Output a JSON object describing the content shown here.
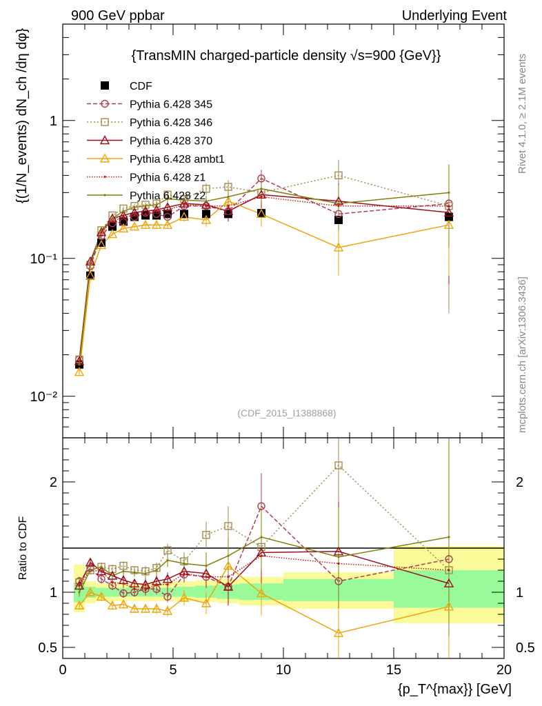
{
  "header": {
    "left": "900 GeV ppbar",
    "right": "Underlying Event"
  },
  "side_texts": {
    "rivet": "Rivet 4.1.0, ≥ 2.1M events",
    "mcplots": "mcplots.cern.ch [arXiv:1306.3436]"
  },
  "colors": {
    "CDF": "#000000",
    "p345": "#b03c54",
    "p346": "#a58a4a",
    "p370": "#990d1e",
    "ambt1": "#f0a30a",
    "z1": "#c0180e",
    "z2": "#7f7f0a",
    "band_inner": "#98fa98",
    "band_outer": "#fafa98"
  },
  "chart_data": [
    {
      "type": "line",
      "panel": "main",
      "title": "{TransMIN charged-particle density √s=900 {GeV}}",
      "ylabel": "{(1/N_events) dN_ch /dη dφ}",
      "xlabel": "",
      "yscale": "log",
      "ylim": [
        0.005,
        5
      ],
      "xlim": [
        0,
        20
      ],
      "ytick_labels": [
        "10⁻²",
        "10⁻¹",
        "1"
      ],
      "watermark": "(CDF_2015_I1388868)",
      "legend_position": "top-left",
      "series": [
        {
          "key": "CDF",
          "name": "CDF",
          "style": "data",
          "x": [
            0.75,
            1.25,
            1.75,
            2.25,
            2.75,
            3.25,
            3.75,
            4.25,
            4.75,
            5.5,
            6.5,
            7.5,
            9,
            12.5,
            17.5
          ],
          "y": [
            0.017,
            0.075,
            0.13,
            0.17,
            0.185,
            0.2,
            0.205,
            0.205,
            0.21,
            0.21,
            0.21,
            0.21,
            0.213,
            0.19,
            0.2
          ],
          "yerr": [
            0.001,
            0.003,
            0.004,
            0.005,
            0.006,
            0.006,
            0.006,
            0.007,
            0.008,
            0.01,
            0.012,
            0.015,
            0.02,
            0.03,
            0.05
          ]
        },
        {
          "key": "p345",
          "name": "Pythia 6.428 345",
          "style": "dashed",
          "marker": "circle",
          "x": [
            0.75,
            1.25,
            1.75,
            2.25,
            2.75,
            3.25,
            3.75,
            4.25,
            4.75,
            5.5,
            6.5,
            7.5,
            9,
            12.5,
            17.5
          ],
          "y": [
            0.0185,
            0.088,
            0.145,
            0.18,
            0.183,
            0.2,
            0.215,
            0.21,
            0.2,
            0.24,
            0.24,
            0.22,
            0.38,
            0.21,
            0.25
          ],
          "yerr": [
            0.001,
            0.003,
            0.004,
            0.006,
            0.006,
            0.007,
            0.008,
            0.009,
            0.01,
            0.015,
            0.02,
            0.03,
            0.06,
            0.08,
            0.12
          ]
        },
        {
          "key": "p346",
          "name": "Pythia 6.428 346",
          "style": "dotted",
          "marker": "square",
          "x": [
            0.75,
            1.25,
            1.75,
            2.25,
            2.75,
            3.25,
            3.75,
            4.25,
            4.75,
            5.5,
            6.5,
            7.5,
            9,
            12.5,
            17.5
          ],
          "y": [
            0.0185,
            0.09,
            0.16,
            0.205,
            0.23,
            0.24,
            0.245,
            0.25,
            0.29,
            0.27,
            0.32,
            0.33,
            0.3,
            0.4,
            0.24
          ],
          "yerr": [
            0.001,
            0.003,
            0.005,
            0.007,
            0.008,
            0.009,
            0.01,
            0.012,
            0.015,
            0.02,
            0.03,
            0.04,
            0.06,
            0.12,
            0.2
          ]
        },
        {
          "key": "p370",
          "name": "Pythia 6.428 370",
          "style": "solid",
          "marker": "triangle",
          "x": [
            0.75,
            1.25,
            1.75,
            2.25,
            2.75,
            3.25,
            3.75,
            4.25,
            4.75,
            5.5,
            6.5,
            7.5,
            9,
            12.5,
            17.5
          ],
          "y": [
            0.018,
            0.095,
            0.155,
            0.195,
            0.205,
            0.215,
            0.22,
            0.225,
            0.235,
            0.25,
            0.245,
            0.22,
            0.29,
            0.26,
            0.215
          ],
          "yerr": [
            0.001,
            0.003,
            0.005,
            0.007,
            0.008,
            0.009,
            0.01,
            0.011,
            0.013,
            0.018,
            0.025,
            0.035,
            0.06,
            0.09,
            0.15
          ]
        },
        {
          "key": "ambt1",
          "name": "Pythia 6.428 ambt1",
          "style": "solid",
          "marker": "triangle",
          "x": [
            0.75,
            1.25,
            1.75,
            2.25,
            2.75,
            3.25,
            3.75,
            4.25,
            4.75,
            5.5,
            6.5,
            7.5,
            9,
            12.5,
            17.5
          ],
          "y": [
            0.015,
            0.075,
            0.125,
            0.15,
            0.165,
            0.17,
            0.175,
            0.175,
            0.175,
            0.2,
            0.19,
            0.26,
            0.21,
            0.12,
            0.175
          ],
          "yerr": [
            0.001,
            0.003,
            0.004,
            0.005,
            0.006,
            0.007,
            0.008,
            0.009,
            0.01,
            0.015,
            0.02,
            0.03,
            0.04,
            0.045,
            0.1
          ]
        },
        {
          "key": "z1",
          "name": "Pythia 6.428 z1",
          "style": "dotted-dense",
          "marker": "dot",
          "x": [
            0.75,
            1.25,
            1.75,
            2.25,
            2.75,
            3.25,
            3.75,
            4.25,
            4.75,
            5.5,
            6.5,
            7.5,
            9,
            12.5,
            17.5
          ],
          "y": [
            0.018,
            0.09,
            0.155,
            0.185,
            0.2,
            0.205,
            0.21,
            0.22,
            0.225,
            0.245,
            0.24,
            0.24,
            0.28,
            0.24,
            0.24
          ],
          "yerr": [
            0.001,
            0.003,
            0.005,
            0.006,
            0.007,
            0.008,
            0.009,
            0.01,
            0.012,
            0.016,
            0.02,
            0.03,
            0.05,
            0.08,
            0.12
          ]
        },
        {
          "key": "z2",
          "name": "Pythia 6.428 z2",
          "style": "solid",
          "marker": "dot",
          "x": [
            0.75,
            1.25,
            1.75,
            2.25,
            2.75,
            3.25,
            3.75,
            4.25,
            4.75,
            5.5,
            6.5,
            7.5,
            9,
            12.5,
            17.5
          ],
          "y": [
            0.017,
            0.09,
            0.16,
            0.195,
            0.22,
            0.235,
            0.24,
            0.245,
            0.27,
            0.265,
            0.26,
            0.28,
            0.32,
            0.25,
            0.3
          ],
          "yerr": [
            0.001,
            0.003,
            0.005,
            0.007,
            0.008,
            0.009,
            0.01,
            0.011,
            0.014,
            0.018,
            0.025,
            0.035,
            0.06,
            0.09,
            0.18
          ]
        }
      ]
    },
    {
      "type": "line",
      "panel": "ratio",
      "ylabel": "Ratio to CDF",
      "xlabel": "{p_T^{max}} [GeV]",
      "ylim": [
        0.4,
        2.4
      ],
      "xlim": [
        0,
        20
      ],
      "yticks": [
        0.5,
        1,
        2
      ],
      "ytick_labels": [
        "0.5",
        "1",
        "2"
      ],
      "xticks": [
        0,
        5,
        10,
        15,
        20
      ],
      "xtick_labels": [
        "0",
        "5",
        "10",
        "15",
        "20"
      ],
      "bands": {
        "edges": [
          0.5,
          1,
          1.5,
          2,
          2.5,
          3,
          3.5,
          4,
          4.5,
          5,
          6,
          7,
          8,
          10,
          15,
          20
        ],
        "inner": [
          [
            0.91,
            1.09
          ],
          [
            0.95,
            1.05
          ],
          [
            0.96,
            1.04
          ],
          [
            0.96,
            1.04
          ],
          [
            0.96,
            1.04
          ],
          [
            0.96,
            1.04
          ],
          [
            0.96,
            1.04
          ],
          [
            0.96,
            1.04
          ],
          [
            0.96,
            1.04
          ],
          [
            0.96,
            1.05
          ],
          [
            0.95,
            1.06
          ],
          [
            0.94,
            1.07
          ],
          [
            0.93,
            1.08
          ],
          [
            0.92,
            1.12
          ],
          [
            0.86,
            1.2
          ]
        ],
        "outer": [
          [
            0.82,
            1.25
          ],
          [
            0.9,
            1.1
          ],
          [
            0.92,
            1.08
          ],
          [
            0.92,
            1.08
          ],
          [
            0.92,
            1.08
          ],
          [
            0.92,
            1.08
          ],
          [
            0.92,
            1.08
          ],
          [
            0.92,
            1.08
          ],
          [
            0.92,
            1.09
          ],
          [
            0.92,
            1.1
          ],
          [
            0.91,
            1.11
          ],
          [
            0.9,
            1.12
          ],
          [
            0.88,
            1.14
          ],
          [
            0.85,
            1.18
          ],
          [
            0.72,
            1.42
          ]
        ]
      },
      "series": [
        {
          "key": "p345",
          "name": "Pythia 6.428 345",
          "x": [
            0.75,
            1.25,
            1.75,
            2.25,
            2.75,
            3.25,
            3.75,
            4.25,
            4.75,
            5.5,
            6.5,
            7.5,
            9,
            12.5,
            17.5
          ],
          "y": [
            1.1,
            1.22,
            1.12,
            1.06,
            0.99,
            1.0,
            1.03,
            1.03,
            0.96,
            1.16,
            1.14,
            1.05,
            1.78,
            1.1,
            1.3
          ],
          "yerr": [
            0.04,
            0.04,
            0.04,
            0.04,
            0.04,
            0.04,
            0.05,
            0.05,
            0.05,
            0.07,
            0.1,
            0.15,
            0.3,
            0.4,
            0.6
          ]
        },
        {
          "key": "p346",
          "name": "Pythia 6.428 346",
          "x": [
            0.75,
            1.25,
            1.75,
            2.25,
            2.75,
            3.25,
            3.75,
            4.25,
            4.75,
            5.5,
            6.5,
            7.5,
            9,
            12.5,
            17.5
          ],
          "y": [
            1.09,
            1.2,
            1.23,
            1.21,
            1.24,
            1.2,
            1.19,
            1.22,
            1.38,
            1.28,
            1.52,
            1.6,
            1.41,
            2.15,
            1.2
          ],
          "yerr": [
            0.04,
            0.04,
            0.04,
            0.04,
            0.04,
            0.04,
            0.05,
            0.05,
            0.06,
            0.08,
            0.12,
            0.18,
            0.3,
            0.6,
            1.0
          ]
        },
        {
          "key": "p370",
          "name": "Pythia 6.428 370",
          "x": [
            0.75,
            1.25,
            1.75,
            2.25,
            2.75,
            3.25,
            3.75,
            4.25,
            4.75,
            5.5,
            6.5,
            7.5,
            9,
            12.5,
            17.5
          ],
          "y": [
            1.06,
            1.27,
            1.19,
            1.15,
            1.11,
            1.08,
            1.07,
            1.1,
            1.12,
            1.19,
            1.17,
            1.05,
            1.36,
            1.37,
            1.08
          ],
          "yerr": [
            0.04,
            0.04,
            0.04,
            0.04,
            0.04,
            0.04,
            0.05,
            0.05,
            0.06,
            0.08,
            0.12,
            0.17,
            0.28,
            0.45,
            0.75
          ]
        },
        {
          "key": "ambt1",
          "name": "Pythia 6.428 ambt1",
          "x": [
            0.75,
            1.25,
            1.75,
            2.25,
            2.75,
            3.25,
            3.75,
            4.25,
            4.75,
            5.5,
            6.5,
            7.5,
            9,
            12.5,
            17.5
          ],
          "y": [
            0.88,
            1.0,
            0.96,
            0.88,
            0.89,
            0.85,
            0.85,
            0.85,
            0.83,
            0.95,
            0.9,
            1.24,
            0.99,
            0.63,
            0.87
          ],
          "yerr": [
            0.04,
            0.04,
            0.04,
            0.04,
            0.04,
            0.04,
            0.04,
            0.05,
            0.05,
            0.07,
            0.1,
            0.15,
            0.2,
            0.35,
            0.5
          ]
        },
        {
          "key": "z1",
          "name": "Pythia 6.428 z1",
          "x": [
            0.75,
            1.25,
            1.75,
            2.25,
            2.75,
            3.25,
            3.75,
            4.25,
            4.75,
            5.5,
            6.5,
            7.5,
            9,
            12.5,
            17.5
          ],
          "y": [
            1.06,
            1.2,
            1.19,
            1.09,
            1.08,
            1.03,
            1.02,
            1.07,
            1.07,
            1.17,
            1.14,
            1.14,
            1.33,
            1.26,
            1.2
          ],
          "yerr": [
            0.04,
            0.04,
            0.04,
            0.04,
            0.04,
            0.04,
            0.05,
            0.05,
            0.06,
            0.08,
            0.1,
            0.14,
            0.25,
            0.4,
            0.6
          ]
        },
        {
          "key": "z2",
          "name": "Pythia 6.428 z2",
          "x": [
            0.75,
            1.25,
            1.75,
            2.25,
            2.75,
            3.25,
            3.75,
            4.25,
            4.75,
            5.5,
            6.5,
            7.5,
            9,
            12.5,
            17.5
          ],
          "y": [
            1.0,
            1.2,
            1.23,
            1.15,
            1.19,
            1.18,
            1.17,
            1.2,
            1.29,
            1.26,
            1.24,
            1.33,
            1.5,
            1.32,
            1.5
          ],
          "yerr": [
            0.04,
            0.04,
            0.04,
            0.04,
            0.04,
            0.04,
            0.05,
            0.05,
            0.06,
            0.08,
            0.12,
            0.17,
            0.3,
            0.45,
            0.9
          ]
        }
      ]
    }
  ]
}
